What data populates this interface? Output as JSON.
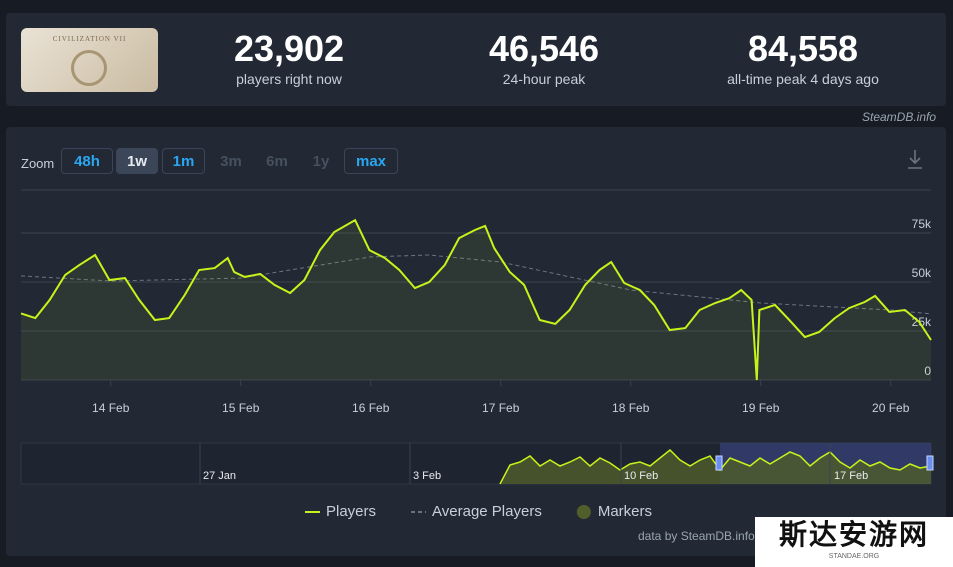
{
  "header": {
    "game_art": "CIVILIZATION VII",
    "stats": [
      {
        "value": "23,902",
        "label": "players right now"
      },
      {
        "value": "46,546",
        "label": "24-hour peak"
      },
      {
        "value": "84,558",
        "label": "all-time peak 4 days ago"
      }
    ],
    "credit": "SteamDB.info"
  },
  "zoom": {
    "label": "Zoom",
    "buttons": [
      {
        "text": "48h",
        "state": "enabled"
      },
      {
        "text": "1w",
        "state": "active"
      },
      {
        "text": "1m",
        "state": "enabled"
      },
      {
        "text": "3m",
        "state": "disabled"
      },
      {
        "text": "6m",
        "state": "disabled"
      },
      {
        "text": "1y",
        "state": "disabled"
      },
      {
        "text": "max",
        "state": "enabled"
      }
    ]
  },
  "chart_data": {
    "type": "line",
    "xlim": [
      13.31,
      20.31
    ],
    "xticks": [
      {
        "value": 14,
        "label": "14 Feb"
      },
      {
        "value": 15,
        "label": "15 Feb"
      },
      {
        "value": 16,
        "label": "16 Feb"
      },
      {
        "value": 17,
        "label": "17 Feb"
      },
      {
        "value": 18,
        "label": "18 Feb"
      },
      {
        "value": 19,
        "label": "19 Feb"
      },
      {
        "value": 20,
        "label": "20 Feb"
      }
    ],
    "ylim": [
      0,
      100000
    ],
    "yticks": [
      0,
      {
        "value": 25000,
        "label": "25k"
      },
      {
        "value": 50000,
        "label": "50k"
      },
      {
        "value": 75000,
        "label": "75k"
      }
    ],
    "grid": true,
    "series": [
      {
        "name": "Players",
        "color": "#c6f41a",
        "style": "solid",
        "x": [
          13.31,
          13.42,
          13.53,
          13.65,
          13.76,
          13.88,
          13.99,
          14.11,
          14.22,
          14.34,
          14.45,
          14.57,
          14.68,
          14.8,
          14.9,
          14.95,
          15.03,
          15.15,
          15.26,
          15.38,
          15.49,
          15.61,
          15.72,
          15.88,
          15.99,
          16.11,
          16.22,
          16.34,
          16.45,
          16.57,
          16.68,
          16.8,
          16.88,
          16.95,
          17.07,
          17.18,
          17.3,
          17.42,
          17.53,
          17.65,
          17.76,
          17.85,
          17.95,
          18.07,
          18.18,
          18.3,
          18.42,
          18.53,
          18.65,
          18.76,
          18.85,
          18.93,
          18.97,
          18.99,
          19.11,
          19.22,
          19.34,
          19.45,
          19.57,
          19.68,
          19.8,
          19.88,
          19.99,
          20.11,
          20.22,
          20.31
        ],
        "values": [
          34000,
          31600,
          40800,
          53600,
          58700,
          63800,
          51000,
          52000,
          40800,
          30600,
          31600,
          43400,
          56100,
          57100,
          62200,
          55100,
          52600,
          54100,
          48500,
          44400,
          51000,
          66300,
          75500,
          81600,
          66300,
          62200,
          56100,
          46900,
          50000,
          58700,
          72400,
          76500,
          78600,
          67300,
          55100,
          48500,
          30600,
          28600,
          35700,
          48500,
          56100,
          60200,
          49500,
          45900,
          38300,
          25500,
          26500,
          35700,
          39300,
          41800,
          45900,
          40800,
          0,
          35700,
          38300,
          30600,
          21900,
          24500,
          31600,
          36700,
          39800,
          42900,
          34700,
          35700,
          29600,
          20400
        ]
      },
      {
        "name": "Average Players",
        "color": "#6b7480",
        "style": "dashed",
        "x": [
          13.31,
          14.0,
          15.0,
          16.0,
          16.45,
          17.0,
          18.0,
          19.0,
          20.0,
          20.31
        ],
        "values": [
          53100,
          50500,
          52000,
          62800,
          63800,
          60200,
          45900,
          39300,
          35700,
          33700
        ]
      }
    ],
    "markers": {
      "name": "Markers",
      "color": "#4f5e2b"
    },
    "legend": "bottom"
  },
  "navigator": {
    "labels": [
      "27 Jan",
      "3 Feb",
      "10 Feb",
      "17 Feb"
    ]
  },
  "footer": {
    "credit": "data by SteamDB.info"
  },
  "watermark": {
    "title": "斯达安游网",
    "subtitle": "STANDAE.ORG"
  }
}
